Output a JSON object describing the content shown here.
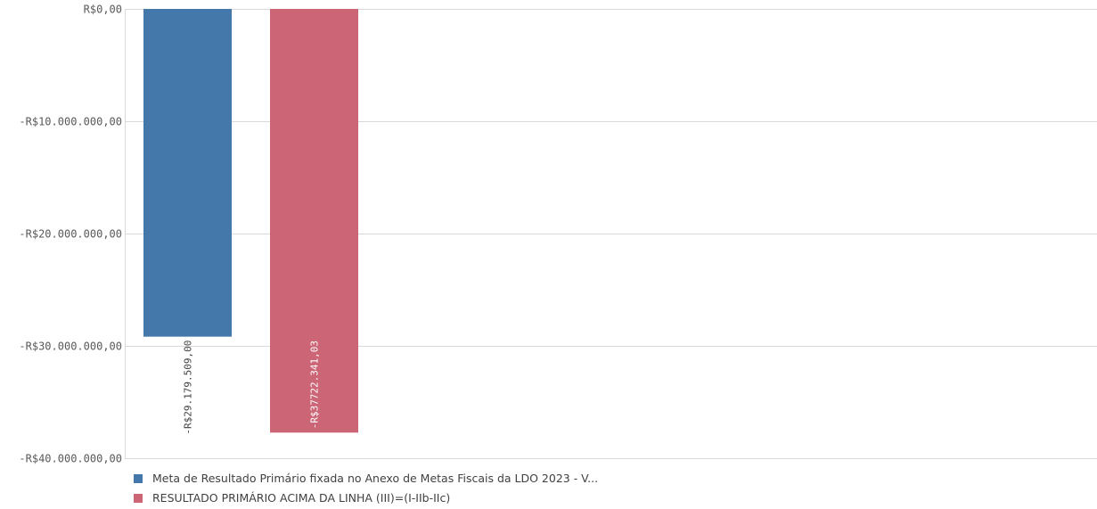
{
  "chart_data": {
    "type": "bar",
    "title": "",
    "xlabel": "",
    "ylabel": "",
    "ylim": [
      -40000000,
      0
    ],
    "yticks": [
      0,
      -10000000,
      -20000000,
      -30000000,
      -40000000
    ],
    "ytick_labels": [
      "R$0,00",
      "-R$10.000.000,00",
      "-R$20.000.000,00",
      "-R$30.000.000,00",
      "-R$40.000.000,00"
    ],
    "grid": true,
    "legend_position": "bottom-left",
    "series": [
      {
        "name": "Meta de Resultado Primário fixada no Anexo de Metas Fiscais da LDO 2023 - V...",
        "value": -29179509.0,
        "label": "-R$29.179.509,00",
        "color": "#4477aa",
        "label_color": "#404040"
      },
      {
        "name": "RESULTADO PRIMÁRIO ACIMA DA LINHA (III)=(I-IIb-IIc)",
        "value": -37722341.03,
        "label": "-R$37722.341,03",
        "color": "#cc6677",
        "label_color": "#ffffff"
      }
    ]
  }
}
